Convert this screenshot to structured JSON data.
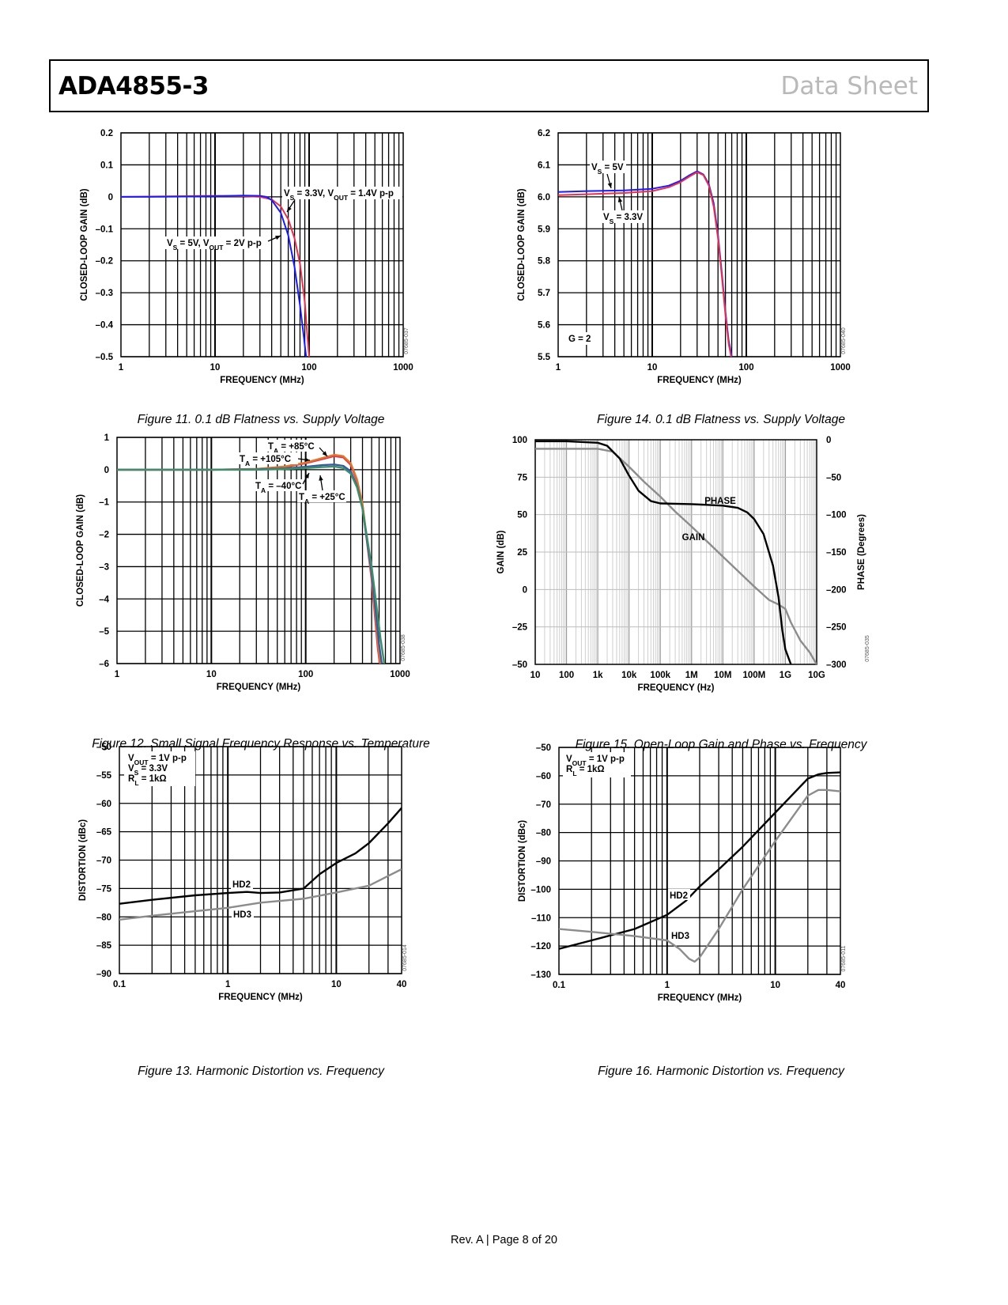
{
  "header": {
    "part_number": "ADA4855-3",
    "doc_type": "Data Sheet"
  },
  "footer": {
    "text": "Rev. A | Page 8 of 20"
  },
  "chart_data": [
    {
      "id": "fig11",
      "type": "line",
      "caption": "Figure 11. 0.1 dB Flatness vs. Supply Voltage",
      "fig_code": "07685-037",
      "xlabel": "FREQUENCY (MHz)",
      "ylabel": "CLOSED-LOOP GAIN (dB)",
      "xscale": "log",
      "xlim": [
        1,
        1000
      ],
      "ylim": [
        -0.5,
        0.2
      ],
      "xticks": [
        1,
        10,
        100,
        1000
      ],
      "xticklabels": [
        "1",
        "10",
        "100",
        "1000"
      ],
      "yticks": [
        0.2,
        0.1,
        0,
        -0.1,
        -0.2,
        -0.3,
        -0.4,
        -0.5
      ],
      "yticklabels": [
        "0.2",
        "0.1",
        "0",
        "–0.1",
        "–0.2",
        "–0.3",
        "–0.4",
        "–0.5"
      ],
      "series": [
        {
          "name": "VS = 5V, VOUT = 2V p-p",
          "color": "#e8304f",
          "x": [
            1,
            2,
            5,
            10,
            20,
            30,
            40,
            50,
            60,
            70,
            80,
            90,
            95,
            100
          ],
          "y": [
            0,
            0.001,
            0.002,
            0.003,
            0.002,
            0,
            -0.008,
            -0.03,
            -0.07,
            -0.13,
            -0.21,
            -0.33,
            -0.42,
            -0.5
          ]
        },
        {
          "name": "VS = 3.3V, VOUT = 1.4V p-p",
          "color": "#1a1aff",
          "x": [
            1,
            2,
            5,
            10,
            20,
            30,
            35,
            40,
            50,
            60,
            70,
            80,
            88,
            93
          ],
          "y": [
            0,
            0,
            0.001,
            0.002,
            0.004,
            0.003,
            0,
            -0.01,
            -0.05,
            -0.12,
            -0.22,
            -0.34,
            -0.44,
            -0.5
          ]
        }
      ],
      "annotations": [
        {
          "main": "V",
          "sub": "S",
          "tail": " = 3.3V, V",
          "sub2": "OUT",
          "tail2": " = 1.4V p-p"
        },
        {
          "main": "V",
          "sub": "S",
          "tail": " = 5V, V",
          "sub2": "OUT",
          "tail2": " = 2V p-p"
        }
      ]
    },
    {
      "id": "fig14",
      "type": "line",
      "caption": "Figure 14. 0.1 dB Flatness vs. Supply Voltage",
      "fig_code": "07685-040",
      "xlabel": "FREQUENCY (MHz)",
      "ylabel": "CLOSED-LOOP GAIN (dB)",
      "xscale": "log",
      "xlim": [
        1,
        1000
      ],
      "ylim": [
        5.5,
        6.2
      ],
      "xticks": [
        1,
        10,
        100,
        1000
      ],
      "xticklabels": [
        "1",
        "10",
        "100",
        "1000"
      ],
      "yticks": [
        6.2,
        6.1,
        6.0,
        5.9,
        5.8,
        5.7,
        5.6,
        5.5
      ],
      "yticklabels": [
        "6.2",
        "6.1",
        "6.0",
        "5.9",
        "5.8",
        "5.7",
        "5.6",
        "5.5"
      ],
      "series": [
        {
          "name": "VS = 5V",
          "color": "#1a1aff",
          "x": [
            1,
            2,
            5,
            10,
            15,
            20,
            25,
            30,
            35,
            40,
            45,
            50,
            55,
            60,
            65,
            70
          ],
          "y": [
            6.015,
            6.018,
            6.02,
            6.025,
            6.035,
            6.05,
            6.068,
            6.08,
            6.07,
            6.04,
            5.98,
            5.88,
            5.76,
            5.64,
            5.55,
            5.5
          ]
        },
        {
          "name": "VS = 3.3V",
          "color": "#e8304f",
          "x": [
            1,
            2,
            5,
            10,
            15,
            20,
            25,
            30,
            35,
            40,
            45,
            50,
            55,
            60,
            65,
            69
          ],
          "y": [
            6.005,
            6.008,
            6.012,
            6.018,
            6.03,
            6.046,
            6.064,
            6.077,
            6.068,
            6.035,
            5.97,
            5.87,
            5.75,
            5.63,
            5.54,
            5.5
          ]
        }
      ],
      "annotations": [
        {
          "main": "V",
          "sub": "S",
          "tail": " = 5V"
        },
        {
          "main": "V",
          "sub": "S",
          "tail": " = 3.3V"
        },
        {
          "text": "G = 2"
        }
      ]
    },
    {
      "id": "fig12",
      "type": "line",
      "caption": "Figure 12. Small Signal Frequency Response vs. Temperature",
      "fig_code": "07685-038",
      "xlabel": "FREQUENCY (MHz)",
      "ylabel": "CLOSED-LOOP GAIN (dB)",
      "xscale": "log",
      "xlim": [
        1,
        1000
      ],
      "ylim": [
        -6,
        1
      ],
      "xticks": [
        1,
        10,
        100,
        1000
      ],
      "xticklabels": [
        "1",
        "10",
        "100",
        "1000"
      ],
      "yticks": [
        1,
        0,
        -1,
        -2,
        -3,
        -4,
        -5,
        -6
      ],
      "yticklabels": [
        "1",
        "0",
        "–1",
        "–2",
        "–3",
        "–4",
        "–5",
        "–6"
      ],
      "series": [
        {
          "name": "TA = +85°C",
          "color": "#e8304f",
          "x": [
            1,
            10,
            30,
            60,
            100,
            150,
            200,
            250,
            300,
            350,
            400,
            500,
            580,
            610
          ],
          "y": [
            0,
            0,
            0.02,
            0.08,
            0.2,
            0.33,
            0.42,
            0.38,
            0.15,
            -0.35,
            -1.1,
            -3.4,
            -5.5,
            -6
          ]
        },
        {
          "name": "TA = +105°C",
          "color": "#e0782a",
          "x": [
            1,
            10,
            30,
            60,
            100,
            150,
            200,
            250,
            300,
            350,
            400,
            500,
            590,
            620
          ],
          "y": [
            0,
            0,
            0.02,
            0.1,
            0.22,
            0.36,
            0.46,
            0.42,
            0.2,
            -0.3,
            -1.05,
            -3.3,
            -5.5,
            -6
          ]
        },
        {
          "name": "TA = +25°C",
          "color": "#3a5aa0",
          "x": [
            1,
            10,
            30,
            60,
            100,
            150,
            200,
            250,
            300,
            350,
            400,
            500,
            600,
            640
          ],
          "y": [
            0,
            0,
            0.01,
            0.04,
            0.09,
            0.14,
            0.16,
            0.12,
            -0.05,
            -0.5,
            -1.2,
            -3.2,
            -5.4,
            -6
          ]
        },
        {
          "name": "TA = −40°C",
          "color": "#3c8f6a",
          "x": [
            1,
            10,
            30,
            60,
            100,
            150,
            200,
            250,
            300,
            350,
            400,
            500,
            620,
            680
          ],
          "y": [
            0,
            0,
            0,
            0.02,
            0.05,
            0.08,
            0.1,
            0.05,
            -0.12,
            -0.55,
            -1.2,
            -3.0,
            -5.2,
            -6
          ]
        }
      ],
      "annotations": [
        {
          "main": "T",
          "sub": "A",
          "tail": " = +85°C"
        },
        {
          "main": "T",
          "sub": "A",
          "tail": " = +105°C"
        },
        {
          "main": "T",
          "sub": "A",
          "tail": " = –40°C"
        },
        {
          "main": "T",
          "sub": "A",
          "tail": " = +25°C"
        }
      ]
    },
    {
      "id": "fig15",
      "type": "line",
      "caption": "Figure 15. Open-Loop Gain and Phase vs. Frequency",
      "fig_code": "07685-035",
      "xlabel": "FREQUENCY (Hz)",
      "ylabel": "GAIN (dB)",
      "y2label": "PHASE (Degrees)",
      "xscale": "log",
      "xlim": [
        10,
        10000000000
      ],
      "ylim": [
        -50,
        100
      ],
      "y2lim": [
        -300,
        0
      ],
      "xticks": [
        10,
        100,
        1000,
        10000,
        100000,
        1000000,
        10000000,
        100000000,
        1000000000,
        10000000000
      ],
      "xticklabels": [
        "10",
        "100",
        "1k",
        "10k",
        "100k",
        "1M",
        "10M",
        "100M",
        "1G",
        "10G"
      ],
      "yticks": [
        100,
        75,
        50,
        25,
        0,
        -25,
        -50
      ],
      "yticklabels": [
        "100",
        "75",
        "50",
        "25",
        "0",
        "–25",
        "–50"
      ],
      "y2ticks": [
        0,
        -50,
        -100,
        -150,
        -200,
        -250,
        -300
      ],
      "y2ticklabels": [
        "0",
        "–50",
        "–100",
        "–150",
        "–200",
        "–250",
        "–300"
      ],
      "series": [
        {
          "name": "GAIN",
          "color": "#8c8c8c",
          "axis": "y",
          "x": [
            10,
            100,
            1000,
            3000,
            10000,
            30000,
            100000,
            300000,
            1000000,
            10000000,
            100000000,
            300000000,
            600000000,
            1000000000,
            1500000000,
            3000000000,
            6000000000,
            10000000000
          ],
          "y": [
            94,
            94,
            94,
            92,
            82,
            72,
            62,
            52,
            42,
            22,
            2,
            -7,
            -10,
            -13,
            -22,
            -34,
            -42,
            -50
          ]
        },
        {
          "name": "PHASE",
          "color": "#000000",
          "axis": "y2",
          "x": [
            10,
            100,
            1000,
            2000,
            5000,
            10000,
            20000,
            50000,
            100000,
            1000000,
            10000000,
            30000000,
            60000000,
            100000000,
            200000000,
            400000000,
            600000000,
            800000000,
            1000000000,
            1500000000
          ],
          "y": [
            -2,
            -2,
            -4,
            -8,
            -25,
            -48,
            -68,
            -82,
            -85,
            -86,
            -88,
            -91,
            -97,
            -106,
            -126,
            -168,
            -210,
            -255,
            -280,
            -300
          ]
        }
      ],
      "annotations": [
        {
          "text": "PHASE"
        },
        {
          "text": "GAIN"
        }
      ]
    },
    {
      "id": "fig13",
      "type": "line",
      "caption": "Figure 13. Harmonic Distortion vs. Frequency",
      "fig_code": "07685-014",
      "xlabel": "FREQUENCY (MHz)",
      "ylabel": "DISTORTION (dBc)",
      "xscale": "log",
      "xlim": [
        0.1,
        40
      ],
      "ylim": [
        -90,
        -50
      ],
      "xticks": [
        0.1,
        1,
        10,
        40
      ],
      "xticklabels": [
        "0.1",
        "1",
        "10",
        "40"
      ],
      "yticks": [
        -50,
        -55,
        -60,
        -65,
        -70,
        -75,
        -80,
        -85,
        -90
      ],
      "yticklabels": [
        "–50",
        "–55",
        "–60",
        "–65",
        "–70",
        "–75",
        "–80",
        "–85",
        "–90"
      ],
      "series": [
        {
          "name": "HD2",
          "color": "#000000",
          "x": [
            0.1,
            0.2,
            0.5,
            1,
            1.5,
            2,
            3,
            5,
            7,
            10,
            15,
            20,
            30,
            40
          ],
          "y": [
            -77.7,
            -77,
            -76.2,
            -75.8,
            -75.6,
            -75.8,
            -75.7,
            -75,
            -72.5,
            -70.5,
            -68.8,
            -67,
            -63.5,
            -60.8
          ]
        },
        {
          "name": "HD3",
          "color": "#8c8c8c",
          "x": [
            0.1,
            0.2,
            0.5,
            1,
            2,
            5,
            10,
            20,
            30,
            40
          ],
          "y": [
            -80.5,
            -79.8,
            -79,
            -78.4,
            -77.5,
            -76.8,
            -75.7,
            -74.5,
            -72.8,
            -71.6
          ]
        }
      ],
      "annotations": [
        {
          "main": "V",
          "sub": "OUT",
          "tail": " = 1V p-p"
        },
        {
          "main": "V",
          "sub": "S",
          "tail": " = 3.3V"
        },
        {
          "main": "R",
          "sub": "L",
          "tail": " = 1kΩ"
        },
        {
          "text": "HD2"
        },
        {
          "text": "HD3"
        }
      ]
    },
    {
      "id": "fig16",
      "type": "line",
      "caption": "Figure 16. Harmonic Distortion vs. Frequency",
      "fig_code": "07685-011",
      "xlabel": "FREQUENCY (MHz)",
      "ylabel": "DISTORTION (dBc)",
      "xscale": "log",
      "xlim": [
        0.1,
        40
      ],
      "ylim": [
        -130,
        -50
      ],
      "xticks": [
        0.1,
        1,
        10,
        40
      ],
      "xticklabels": [
        "0.1",
        "1",
        "10",
        "40"
      ],
      "yticks": [
        -50,
        -60,
        -70,
        -80,
        -90,
        -100,
        -110,
        -120,
        -130
      ],
      "yticklabels": [
        "–50",
        "–60",
        "–70",
        "–80",
        "–90",
        "–100",
        "–110",
        "–120",
        "–130"
      ],
      "series": [
        {
          "name": "HD2",
          "color": "#000000",
          "x": [
            0.1,
            0.2,
            0.5,
            1,
            1.5,
            2,
            3,
            5,
            10,
            20,
            25,
            30,
            40
          ],
          "y": [
            -121,
            -118,
            -114,
            -109,
            -104,
            -99,
            -93,
            -85,
            -73,
            -61,
            -59.5,
            -59,
            -58.8
          ]
        },
        {
          "name": "HD3",
          "color": "#8c8c8c",
          "x": [
            0.1,
            0.2,
            0.5,
            1,
            1.3,
            1.6,
            1.8,
            2,
            3,
            5,
            10,
            20,
            25,
            30,
            40
          ],
          "y": [
            -114,
            -115,
            -116.5,
            -118,
            -121,
            -124.5,
            -125.5,
            -124,
            -114,
            -100,
            -83,
            -67,
            -65,
            -65,
            -65.5
          ]
        }
      ],
      "annotations": [
        {
          "main": "V",
          "sub": "OUT",
          "tail": " = 1V p-p"
        },
        {
          "main": "R",
          "sub": "L",
          "tail": " = 1kΩ"
        },
        {
          "text": "HD2"
        },
        {
          "text": "HD3"
        }
      ]
    }
  ]
}
